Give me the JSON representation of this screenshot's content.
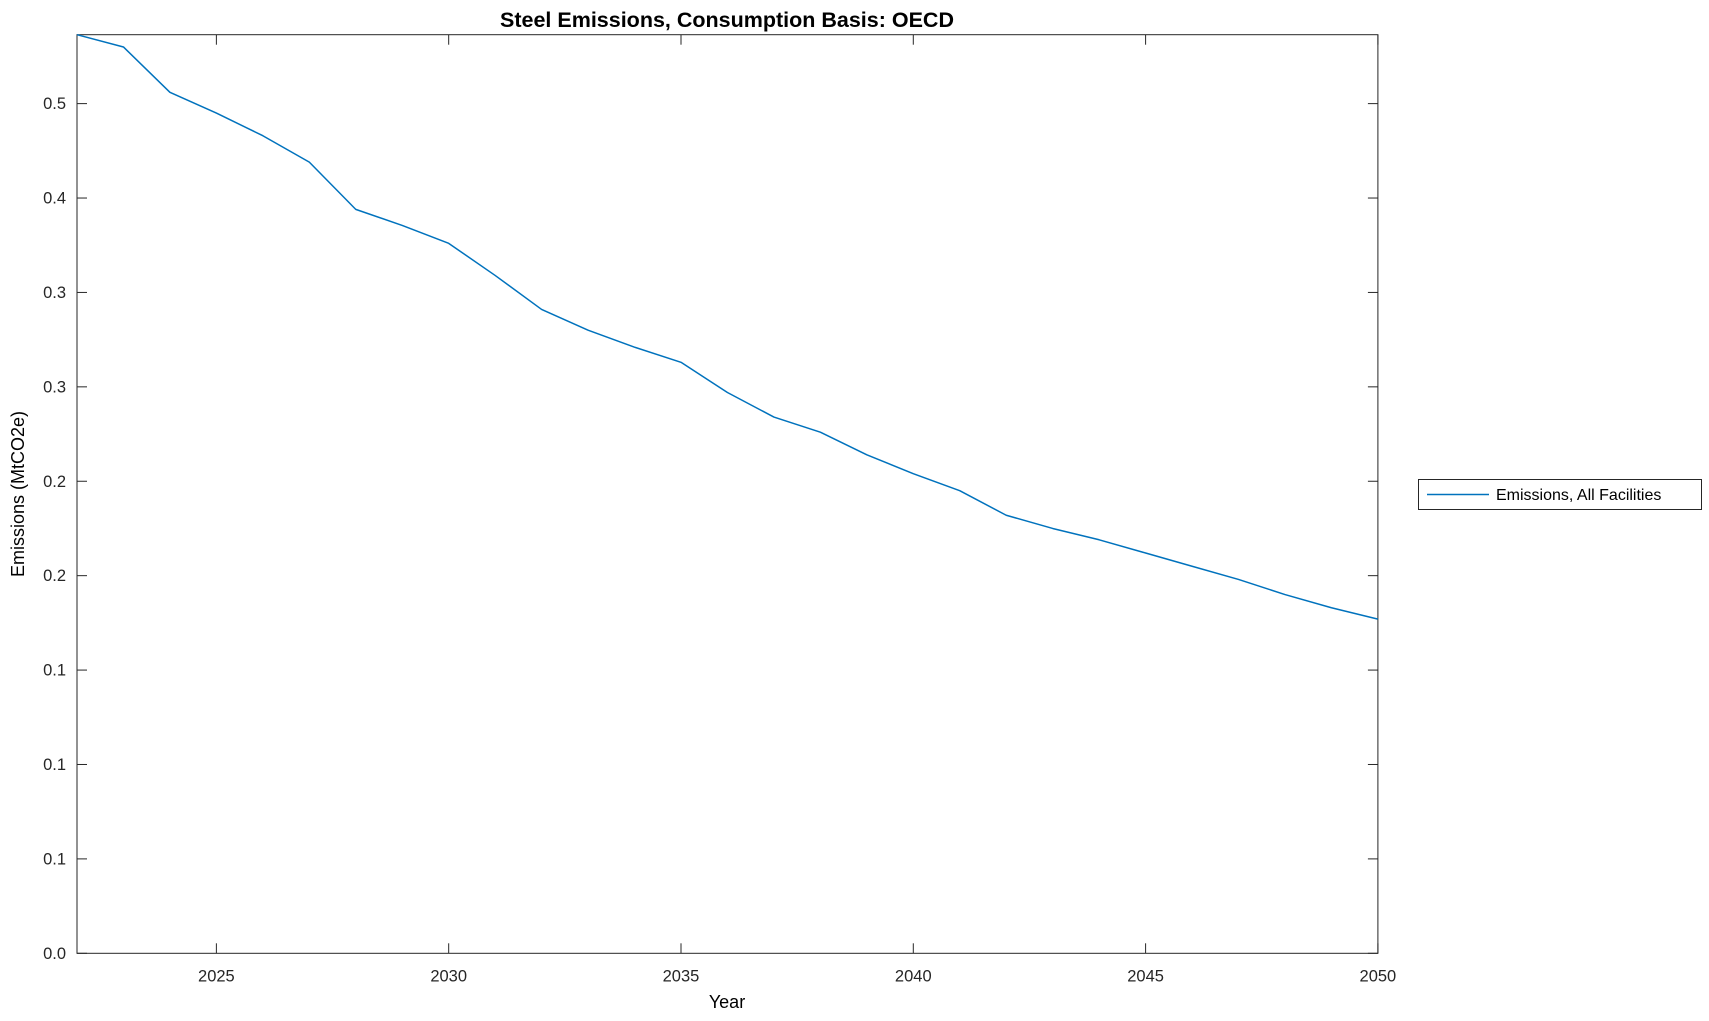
{
  "chart_data": {
    "type": "line",
    "title": "Steel Emissions, Consumption Basis: OECD",
    "xlabel": "Year",
    "ylabel": "Emissions (MtCO2e)",
    "grid": false,
    "legend": {
      "position": "right-outside",
      "entries": [
        "Emissions, All Facilities"
      ]
    },
    "xlim": [
      2022,
      2050
    ],
    "ylim": [
      0,
      0.4865
    ],
    "x_ticks": [
      2025,
      2030,
      2035,
      2040,
      2045,
      2050
    ],
    "x_tick_labels": [
      "2025",
      "2030",
      "2035",
      "2040",
      "2045",
      "2050"
    ],
    "y_ticks": [
      0.0,
      0.05,
      0.1,
      0.15,
      0.2,
      0.25,
      0.3,
      0.35,
      0.4,
      0.45
    ],
    "y_tick_labels": [
      "0.0",
      "0.1",
      "0.1",
      "0.1",
      "0.2",
      "0.2",
      "0.3",
      "0.3",
      "0.4",
      "0.5"
    ],
    "series": [
      {
        "name": "Emissions, All Facilities",
        "color": "#0072BD",
        "x": [
          2022,
          2023,
          2024,
          2025,
          2026,
          2027,
          2028,
          2029,
          2030,
          2031,
          2032,
          2033,
          2034,
          2035,
          2036,
          2037,
          2038,
          2039,
          2040,
          2041,
          2042,
          2043,
          2044,
          2045,
          2046,
          2047,
          2048,
          2049,
          2050
        ],
        "values": [
          0.4865,
          0.48,
          0.456,
          0.445,
          0.433,
          0.419,
          0.394,
          0.3855,
          0.376,
          0.359,
          0.341,
          0.33,
          0.321,
          0.313,
          0.297,
          0.284,
          0.276,
          0.264,
          0.254,
          0.245,
          0.232,
          0.225,
          0.219,
          0.212,
          0.205,
          0.198,
          0.19,
          0.183,
          0.177
        ]
      }
    ]
  },
  "colors": {
    "line": "#0072BD",
    "axis": "#262626",
    "text": "#000000",
    "background": "#ffffff"
  }
}
